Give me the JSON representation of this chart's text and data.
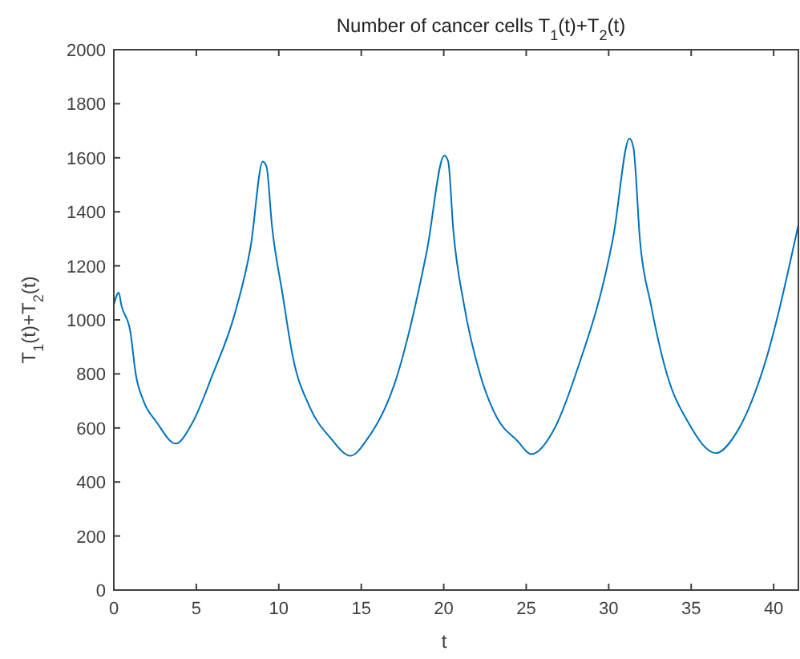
{
  "chart_data": {
    "type": "line",
    "title": "Number of cancer cells T$_{1}$(t)+T$_{2}$(t)",
    "xlabel": "t",
    "ylabel": "T$_{1}$(t)+T$_{2}$(t)",
    "x": [
      0,
      0.3,
      0.45,
      1.0,
      1.33,
      1.8,
      2.6,
      3.75,
      4.7,
      6.0,
      7.3,
      8.3,
      9.03,
      9.26,
      9.58,
      10.23,
      10.87,
      11.85,
      13.15,
      14.34,
      15.4,
      17.0,
      18.97,
      20.04,
      20.27,
      20.58,
      21.23,
      22.2,
      23.2,
      24.47,
      25.31,
      26.74,
      28.0,
      30.29,
      31.26,
      31.5,
      31.9,
      32.56,
      33.53,
      34.82,
      36.5,
      37.74,
      39.36,
      41.5
    ],
    "series": [
      {
        "color": "#0072bd",
        "values": [
          1056,
          1101,
          1056,
          957,
          799,
          700,
          621,
          542,
          612,
          799,
          1016,
          1273,
          1586,
          1566,
          1352,
          1095,
          858,
          681,
          562,
          497,
          562,
          760,
          1253,
          1608,
          1586,
          1332,
          1056,
          799,
          641,
          552,
          503,
          601,
          799,
          1312,
          1671,
          1638,
          1292,
          1056,
          799,
          621,
          507,
          582,
          818,
          1352
        ]
      }
    ],
    "xlim": [
      0,
      41.5
    ],
    "ylim": [
      0,
      2000
    ],
    "xticks": [
      0,
      5,
      10,
      15,
      20,
      25,
      30,
      35,
      40
    ],
    "yticks": [
      0,
      200,
      400,
      600,
      800,
      1000,
      1200,
      1400,
      1600,
      1800,
      2000
    ],
    "grid": false,
    "marker": "none",
    "line_style": "solid"
  }
}
